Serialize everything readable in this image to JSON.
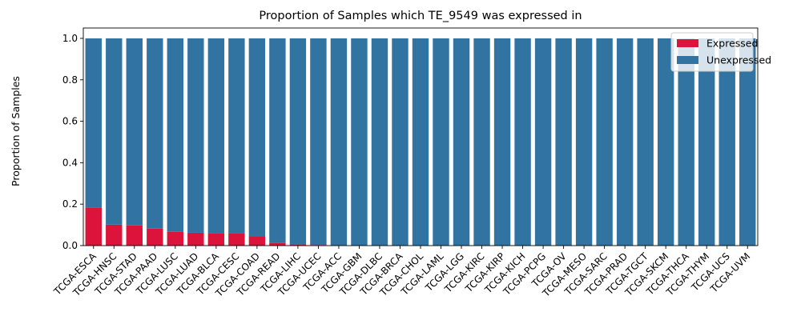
{
  "chart_data": {
    "type": "bar",
    "stacked": true,
    "title": "Proportion of Samples which TE_9549 was expressed in",
    "xlabel": "",
    "ylabel": "Proportion of Samples",
    "ylim": [
      0,
      1.05
    ],
    "yticks": [
      "0.0",
      "0.2",
      "0.4",
      "0.6",
      "0.8",
      "1.0"
    ],
    "grid": false,
    "legend_position": "top-right",
    "categories": [
      "TCGA-ESCA",
      "TCGA-HNSC",
      "TCGA-STAD",
      "TCGA-PAAD",
      "TCGA-LUSC",
      "TCGA-LUAD",
      "TCGA-BLCA",
      "TCGA-CESC",
      "TCGA-COAD",
      "TCGA-READ",
      "TCGA-LIHC",
      "TCGA-UCEC",
      "TCGA-ACC",
      "TCGA-GBM",
      "TCGA-DLBC",
      "TCGA-BRCA",
      "TCGA-CHOL",
      "TCGA-LAML",
      "TCGA-LGG",
      "TCGA-KIRC",
      "TCGA-KIRP",
      "TCGA-KICH",
      "TCGA-PCPG",
      "TCGA-OV",
      "TCGA-MESO",
      "TCGA-SARC",
      "TCGA-PRAD",
      "TCGA-TGCT",
      "TCGA-SKCM",
      "TCGA-THCA",
      "TCGA-THYM",
      "TCGA-UCS",
      "TCGA-UVM"
    ],
    "series": [
      {
        "name": "Expressed",
        "color": "#dc143c",
        "values": [
          0.184,
          0.101,
          0.097,
          0.082,
          0.066,
          0.062,
          0.058,
          0.058,
          0.046,
          0.013,
          0.004,
          0.003,
          0,
          0,
          0,
          0,
          0,
          0,
          0,
          0,
          0,
          0,
          0,
          0,
          0,
          0,
          0,
          0,
          0,
          0,
          0,
          0,
          0
        ]
      },
      {
        "name": "Unexpressed",
        "color": "#3274a1",
        "values": [
          0.816,
          0.899,
          0.903,
          0.918,
          0.934,
          0.938,
          0.942,
          0.942,
          0.954,
          0.987,
          0.996,
          0.997,
          1,
          1,
          1,
          1,
          1,
          1,
          1,
          1,
          1,
          1,
          1,
          1,
          1,
          1,
          1,
          1,
          1,
          1,
          1,
          1,
          1
        ]
      }
    ]
  }
}
